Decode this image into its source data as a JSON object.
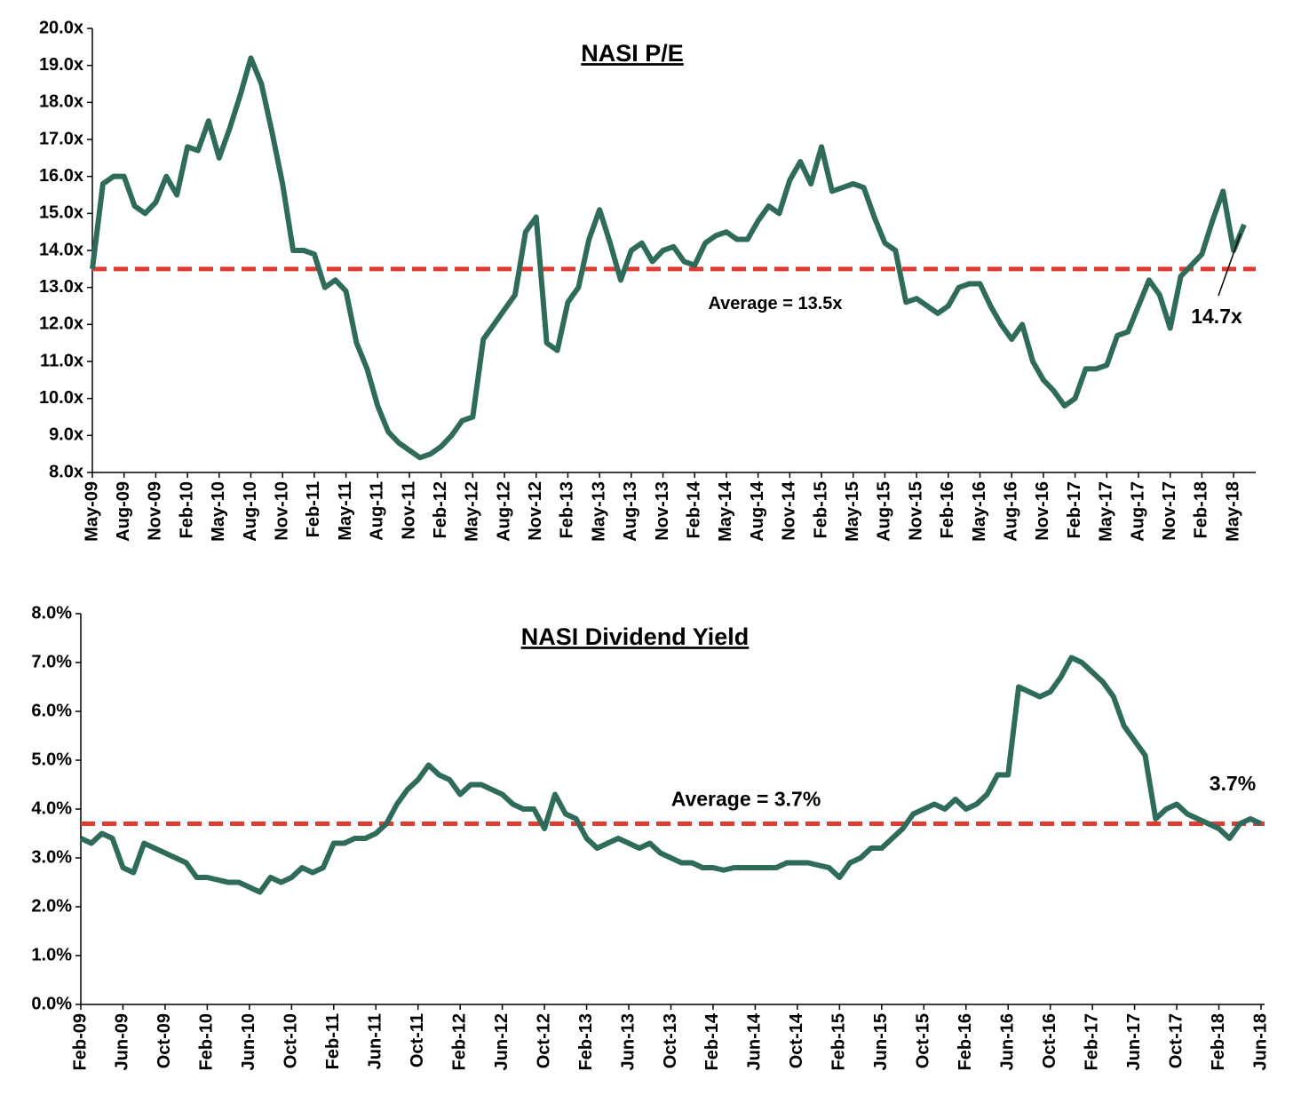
{
  "chart_data": [
    {
      "type": "line",
      "title": "NASI P/E",
      "categories": [
        "May-09",
        null,
        null,
        "Aug-09",
        null,
        null,
        "Nov-09",
        null,
        null,
        "Feb-10",
        null,
        null,
        "May-10",
        null,
        null,
        "Aug-10",
        null,
        null,
        "Nov-10",
        null,
        null,
        "Feb-11",
        null,
        null,
        "May-11",
        null,
        null,
        "Aug-11",
        null,
        null,
        "Nov-11",
        null,
        null,
        "Feb-12",
        null,
        null,
        "May-12",
        null,
        null,
        "Aug-12",
        null,
        null,
        "Nov-12",
        null,
        null,
        "Feb-13",
        null,
        null,
        "May-13",
        null,
        null,
        "Aug-13",
        null,
        null,
        "Nov-13",
        null,
        null,
        "Feb-14",
        null,
        null,
        "May-14",
        null,
        null,
        "Aug-14",
        null,
        null,
        "Nov-14",
        null,
        null,
        "Feb-15",
        null,
        null,
        "May-15",
        null,
        null,
        "Aug-15",
        null,
        null,
        "Nov-15",
        null,
        null,
        "Feb-16",
        null,
        null,
        "May-16",
        null,
        null,
        "Aug-16",
        null,
        null,
        "Nov-16",
        null,
        null,
        "Feb-17",
        null,
        null,
        "May-17",
        null,
        null,
        "Aug-17",
        null,
        null,
        "Nov-17",
        null,
        null,
        "Feb-18",
        null,
        null,
        "May-18",
        null
      ],
      "series": [
        {
          "color": "#2e6b5a",
          "values": [
            13.5,
            15.8,
            16.0,
            16.0,
            15.2,
            15.0,
            15.3,
            16.0,
            15.5,
            16.8,
            16.7,
            17.5,
            16.5,
            17.3,
            18.2,
            19.2,
            18.5,
            17.2,
            15.8,
            14.0,
            14.0,
            13.9,
            13.0,
            13.2,
            12.9,
            11.5,
            10.8,
            9.8,
            9.1,
            8.8,
            8.6,
            8.4,
            8.5,
            8.7,
            9.0,
            9.4,
            9.5,
            11.6,
            12.0,
            12.4,
            12.8,
            14.5,
            14.9,
            11.5,
            11.3,
            12.6,
            13.0,
            14.3,
            15.1,
            14.2,
            13.2,
            14.0,
            14.2,
            13.7,
            14.0,
            14.1,
            13.7,
            13.6,
            14.2,
            14.4,
            14.5,
            14.3,
            14.3,
            14.8,
            15.2,
            15.0,
            15.9,
            16.4,
            15.8,
            16.8,
            15.6,
            15.7,
            15.8,
            15.7,
            14.9,
            14.2,
            14.0,
            12.6,
            12.7,
            12.5,
            12.3,
            12.5,
            13.0,
            13.1,
            13.1,
            12.5,
            12.0,
            11.6,
            12.0,
            11.0,
            10.5,
            10.2,
            9.8,
            10.0,
            10.8,
            10.8,
            10.9,
            11.7,
            11.8,
            12.5,
            13.2,
            12.8,
            11.9,
            13.3,
            13.6,
            13.9,
            14.8,
            15.6,
            14.0,
            14.7
          ]
        }
      ],
      "average": {
        "value": 13.5,
        "label": "Average = 13.5x",
        "color": "#e03c31"
      },
      "last_label": {
        "value": 14.7,
        "label": "14.7x"
      },
      "ylim": [
        8,
        20
      ],
      "yticks": [
        {
          "value": 8,
          "label": "8.0x"
        },
        {
          "value": 9,
          "label": "9.0x"
        },
        {
          "value": 10,
          "label": "10.0x"
        },
        {
          "value": 11,
          "label": "11.0x"
        },
        {
          "value": 12,
          "label": "12.0x"
        },
        {
          "value": 13,
          "label": "13.0x"
        },
        {
          "value": 14,
          "label": "14.0x"
        },
        {
          "value": 15,
          "label": "15.0x"
        },
        {
          "value": 16,
          "label": "16.0x"
        },
        {
          "value": 17,
          "label": "17.0x"
        },
        {
          "value": 18,
          "label": "18.0x"
        },
        {
          "value": 19,
          "label": "19.0x"
        },
        {
          "value": 20,
          "label": "20.0x"
        }
      ],
      "grid": false
    },
    {
      "type": "line",
      "title": "NASI Dividend Yield",
      "categories": [
        "Feb-09",
        null,
        null,
        null,
        "Jun-09",
        null,
        null,
        null,
        "Oct-09",
        null,
        null,
        null,
        "Feb-10",
        null,
        null,
        null,
        "Jun-10",
        null,
        null,
        null,
        "Oct-10",
        null,
        null,
        null,
        "Feb-11",
        null,
        null,
        null,
        "Jun-11",
        null,
        null,
        null,
        "Oct-11",
        null,
        null,
        null,
        "Feb-12",
        null,
        null,
        null,
        "Jun-12",
        null,
        null,
        null,
        "Oct-12",
        null,
        null,
        null,
        "Feb-13",
        null,
        null,
        null,
        "Jun-13",
        null,
        null,
        null,
        "Oct-13",
        null,
        null,
        null,
        "Feb-14",
        null,
        null,
        null,
        "Jun-14",
        null,
        null,
        null,
        "Oct-14",
        null,
        null,
        null,
        "Feb-15",
        null,
        null,
        null,
        "Jun-15",
        null,
        null,
        null,
        "Oct-15",
        null,
        null,
        null,
        "Feb-16",
        null,
        null,
        null,
        "Jun-16",
        null,
        null,
        null,
        "Oct-16",
        null,
        null,
        null,
        "Feb-17",
        null,
        null,
        null,
        "Jun-17",
        null,
        null,
        null,
        "Oct-17",
        null,
        null,
        null,
        "Feb-18",
        null,
        null,
        null,
        "Jun-18"
      ],
      "series": [
        {
          "color": "#2e6b5a",
          "values": [
            3.4,
            3.3,
            3.5,
            3.4,
            2.8,
            2.7,
            3.3,
            3.2,
            3.1,
            3.0,
            2.9,
            2.6,
            2.6,
            2.55,
            2.5,
            2.5,
            2.4,
            2.3,
            2.6,
            2.5,
            2.6,
            2.8,
            2.7,
            2.8,
            3.3,
            3.3,
            3.4,
            3.4,
            3.5,
            3.7,
            4.1,
            4.4,
            4.6,
            4.9,
            4.7,
            4.6,
            4.3,
            4.5,
            4.5,
            4.4,
            4.3,
            4.1,
            4.0,
            4.0,
            3.6,
            4.3,
            3.9,
            3.8,
            3.4,
            3.2,
            3.3,
            3.4,
            3.3,
            3.2,
            3.3,
            3.1,
            3.0,
            2.9,
            2.9,
            2.8,
            2.8,
            2.75,
            2.8,
            2.8,
            2.8,
            2.8,
            2.8,
            2.9,
            2.9,
            2.9,
            2.85,
            2.8,
            2.6,
            2.9,
            3.0,
            3.2,
            3.2,
            3.4,
            3.6,
            3.9,
            4.0,
            4.1,
            4.0,
            4.2,
            4.0,
            4.1,
            4.3,
            4.7,
            4.7,
            6.5,
            6.4,
            6.3,
            6.4,
            6.7,
            7.1,
            7.0,
            6.8,
            6.6,
            6.3,
            5.7,
            5.4,
            5.1,
            3.8,
            4.0,
            4.1,
            3.9,
            3.8,
            3.7,
            3.6,
            3.4,
            3.7,
            3.8,
            3.7
          ]
        }
      ],
      "average": {
        "value": 3.7,
        "label": "Average = 3.7%",
        "color": "#e03c31"
      },
      "last_label": {
        "value": 3.7,
        "label": "3.7%"
      },
      "ylim": [
        0,
        8
      ],
      "yticks": [
        {
          "value": 0,
          "label": "0.0%"
        },
        {
          "value": 1,
          "label": "1.0%"
        },
        {
          "value": 2,
          "label": "2.0%"
        },
        {
          "value": 3,
          "label": "3.0%"
        },
        {
          "value": 4,
          "label": "4.0%"
        },
        {
          "value": 5,
          "label": "5.0%"
        },
        {
          "value": 6,
          "label": "6.0%"
        },
        {
          "value": 7,
          "label": "7.0%"
        },
        {
          "value": 8,
          "label": "8.0%"
        }
      ],
      "grid": false
    }
  ]
}
